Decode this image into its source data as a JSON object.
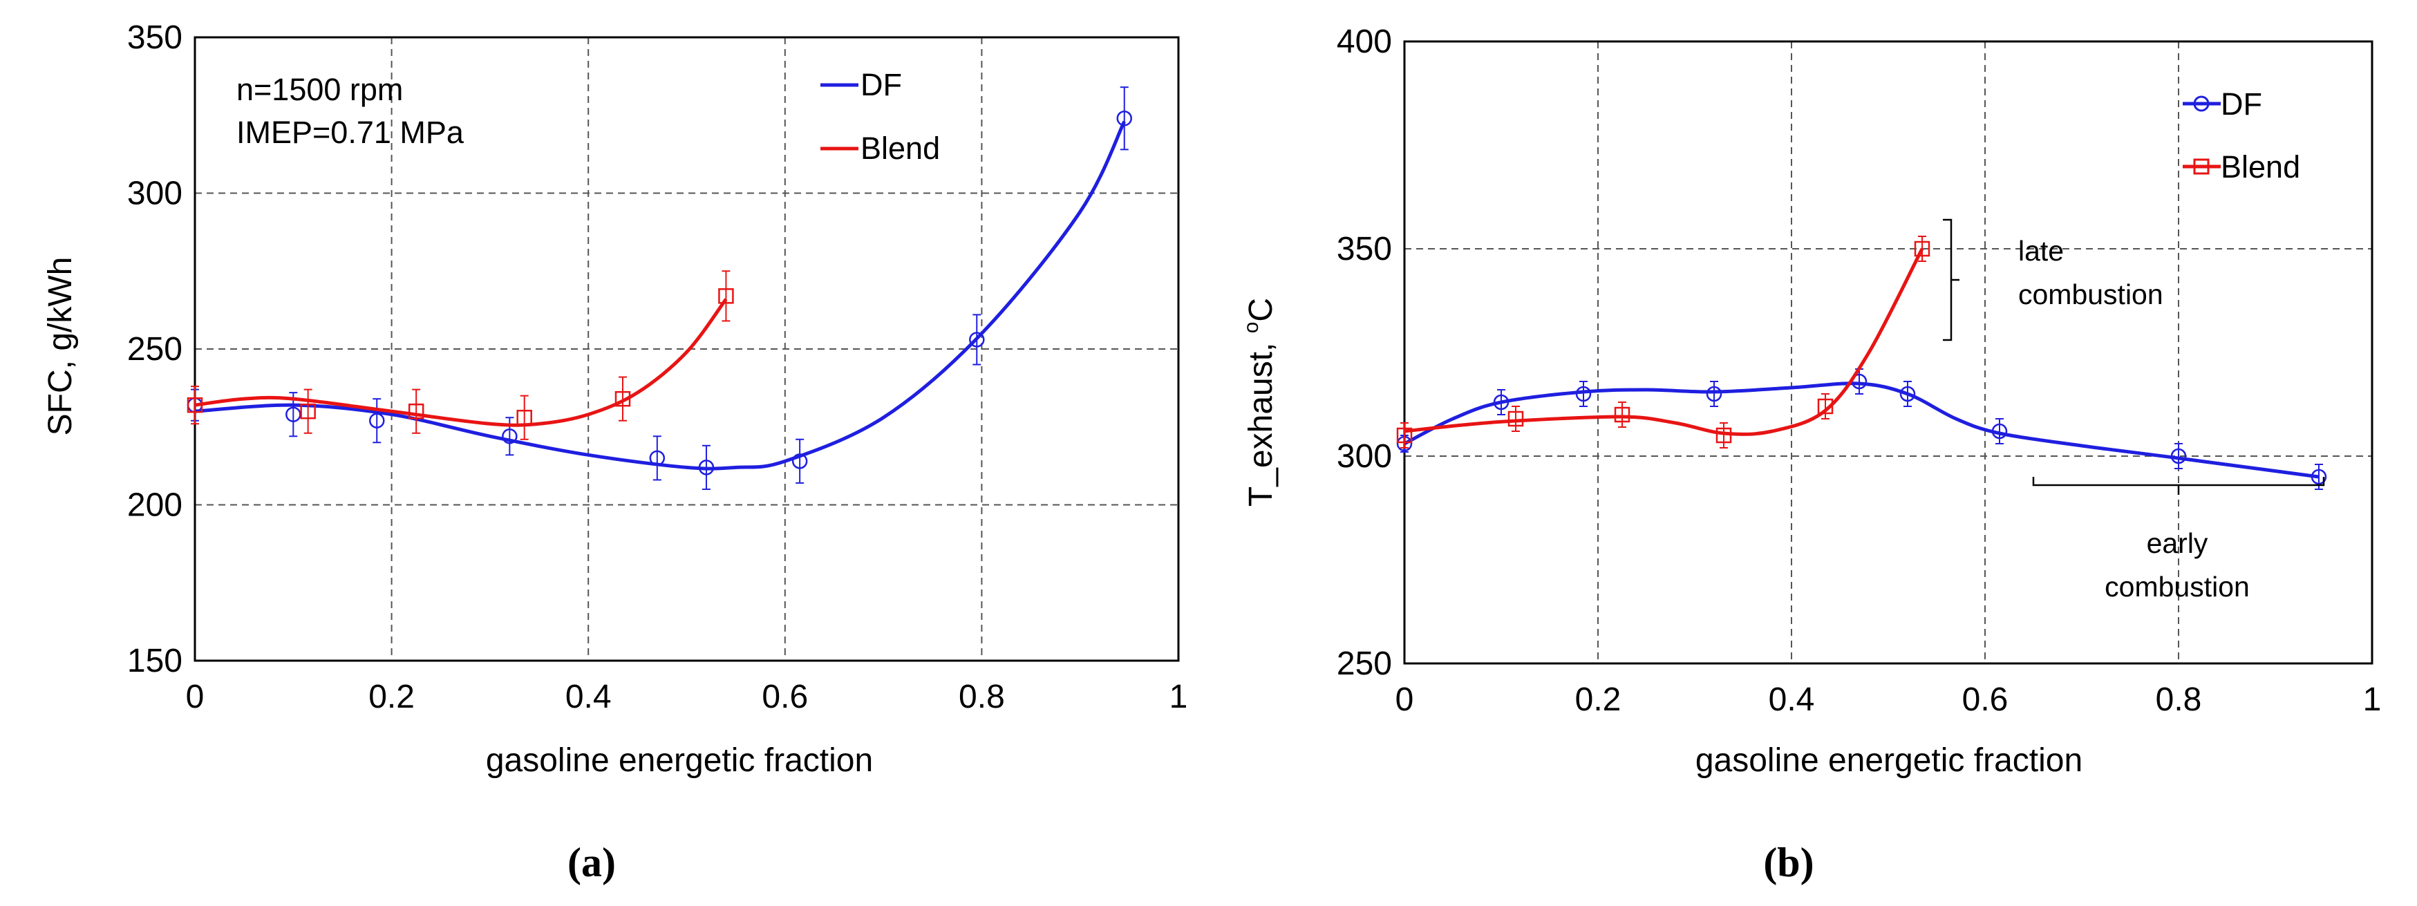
{
  "chart_data": [
    {
      "panel": "a",
      "panel_label": "(a)",
      "type": "line",
      "xlabel": "gasoline energetic fraction",
      "ylabel": "SFC, g/kWh",
      "xlim": [
        0,
        1
      ],
      "ylim": [
        150,
        350
      ],
      "x_ticks": [
        0,
        0.2,
        0.4,
        0.6,
        0.8,
        1
      ],
      "x_tick_labels": [
        "0",
        "0.2",
        "0.4",
        "0.6",
        "0.8",
        "1"
      ],
      "y_ticks": [
        150,
        200,
        250,
        300,
        350
      ],
      "y_tick_labels": [
        "150",
        "200",
        "250",
        "300",
        "350"
      ],
      "grid": true,
      "legend_position": "top-right",
      "annotations": [
        {
          "text": "n=1500 rpm",
          "position": "top-left"
        },
        {
          "text": "IMEP=0.71 MPa",
          "position": "top-left"
        }
      ],
      "series": [
        {
          "name": "DF",
          "color": "#1f1fe0",
          "marker": "circle",
          "points": [
            {
              "x": 0,
              "y": 232,
              "err": 5
            },
            {
              "x": 0.1,
              "y": 229,
              "err": 7
            },
            {
              "x": 0.185,
              "y": 227,
              "err": 7
            },
            {
              "x": 0.32,
              "y": 222,
              "err": 6
            },
            {
              "x": 0.47,
              "y": 215,
              "err": 7
            },
            {
              "x": 0.52,
              "y": 212,
              "err": 7
            },
            {
              "x": 0.615,
              "y": 214,
              "err": 7
            },
            {
              "x": 0.795,
              "y": 253,
              "err": 8
            },
            {
              "x": 0.945,
              "y": 324,
              "err": 10
            }
          ],
          "curve": [
            [
              0,
              230
            ],
            [
              0.1,
              232
            ],
            [
              0.2,
              229
            ],
            [
              0.3,
              222
            ],
            [
              0.4,
              216
            ],
            [
              0.5,
              212
            ],
            [
              0.55,
              212
            ],
            [
              0.6,
              214
            ],
            [
              0.7,
              228
            ],
            [
              0.8,
              255
            ],
            [
              0.9,
              294
            ],
            [
              0.945,
              323
            ]
          ]
        },
        {
          "name": "Blend",
          "color": "#e81414",
          "marker": "square",
          "points": [
            {
              "x": 0,
              "y": 232,
              "err": 6
            },
            {
              "x": 0.115,
              "y": 230,
              "err": 7
            },
            {
              "x": 0.225,
              "y": 230,
              "err": 7
            },
            {
              "x": 0.335,
              "y": 228,
              "err": 7
            },
            {
              "x": 0.435,
              "y": 234,
              "err": 7
            },
            {
              "x": 0.54,
              "y": 267,
              "err": 8
            }
          ],
          "curve": [
            [
              0,
              232
            ],
            [
              0.05,
              234
            ],
            [
              0.1,
              234
            ],
            [
              0.2,
              230
            ],
            [
              0.3,
              226
            ],
            [
              0.35,
              226
            ],
            [
              0.4,
              229
            ],
            [
              0.45,
              236
            ],
            [
              0.5,
              249
            ],
            [
              0.54,
              266
            ]
          ]
        }
      ]
    },
    {
      "panel": "b",
      "panel_label": "(b)",
      "type": "line",
      "xlabel": "gasoline energetic fraction",
      "ylabel": "T_exhaust, °C",
      "ylabel_base": "T_exhaust, ",
      "ylabel_sup": "o",
      "ylabel_unit": "C",
      "xlim": [
        0,
        1
      ],
      "ylim": [
        250,
        400
      ],
      "x_ticks": [
        0,
        0.2,
        0.4,
        0.6,
        0.8,
        1
      ],
      "x_tick_labels": [
        "0",
        "0.2",
        "0.4",
        "0.6",
        "0.8",
        "1"
      ],
      "y_ticks": [
        250,
        300,
        350,
        400
      ],
      "y_tick_labels": [
        "250",
        "300",
        "350",
        "400"
      ],
      "grid": true,
      "legend_position": "top-right",
      "annotations": [
        {
          "text": "late",
          "position": "right of Blend endpoint"
        },
        {
          "text": "combustion",
          "position": "right of Blend endpoint"
        },
        {
          "text": "early",
          "position": "below DF tail"
        },
        {
          "text": "combustion",
          "position": "below DF tail"
        }
      ],
      "brackets": [
        {
          "axis": "y",
          "x": 0.565,
          "from": 328,
          "to": 357
        },
        {
          "axis": "x",
          "y": 293,
          "from": 0.65,
          "to": 0.95,
          "tick_x": 0.8
        }
      ],
      "series": [
        {
          "name": "DF",
          "color": "#1f1fe0",
          "marker": "circle",
          "points": [
            {
              "x": 0,
              "y": 303,
              "err": 2
            },
            {
              "x": 0.1,
              "y": 313,
              "err": 3
            },
            {
              "x": 0.185,
              "y": 315,
              "err": 3
            },
            {
              "x": 0.32,
              "y": 315,
              "err": 3
            },
            {
              "x": 0.47,
              "y": 318,
              "err": 3
            },
            {
              "x": 0.52,
              "y": 315,
              "err": 3
            },
            {
              "x": 0.615,
              "y": 306,
              "err": 3
            },
            {
              "x": 0.8,
              "y": 300,
              "err": 3
            },
            {
              "x": 0.945,
              "y": 295,
              "err": 3
            }
          ],
          "curve": [
            [
              0,
              303
            ],
            [
              0.05,
              309
            ],
            [
              0.1,
              313
            ],
            [
              0.185,
              315.5
            ],
            [
              0.25,
              316
            ],
            [
              0.32,
              315.5
            ],
            [
              0.4,
              316.5
            ],
            [
              0.47,
              317.5
            ],
            [
              0.52,
              315
            ],
            [
              0.57,
              309
            ],
            [
              0.615,
              305.5
            ],
            [
              0.7,
              302.5
            ],
            [
              0.8,
              299.5
            ],
            [
              0.945,
              295
            ]
          ]
        },
        {
          "name": "Blend",
          "color": "#e81414",
          "marker": "square",
          "points": [
            {
              "x": 0,
              "y": 305,
              "err": 3
            },
            {
              "x": 0.115,
              "y": 309,
              "err": 3
            },
            {
              "x": 0.225,
              "y": 310,
              "err": 3
            },
            {
              "x": 0.33,
              "y": 305,
              "err": 3
            },
            {
              "x": 0.435,
              "y": 312,
              "err": 3
            },
            {
              "x": 0.535,
              "y": 350,
              "err": 3
            }
          ],
          "curve": [
            [
              0,
              306
            ],
            [
              0.06,
              307.5
            ],
            [
              0.115,
              308.5
            ],
            [
              0.225,
              309.5
            ],
            [
              0.28,
              308
            ],
            [
              0.33,
              305.5
            ],
            [
              0.38,
              306
            ],
            [
              0.435,
              311
            ],
            [
              0.48,
              325
            ],
            [
              0.535,
              350
            ]
          ]
        }
      ]
    }
  ]
}
